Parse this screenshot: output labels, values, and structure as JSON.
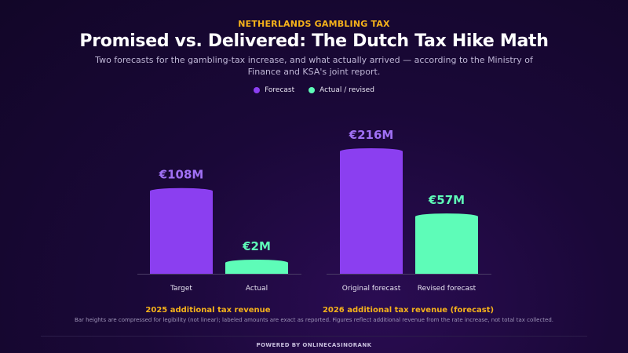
{
  "header": {
    "kicker": "NETHERLANDS GAMBLING TAX",
    "title": "Promised vs. Delivered: The Dutch Tax Hike Math",
    "subtitle": "Two forecasts for the gambling-tax increase, and what actually arrived — according to the Ministry of Finance and KSA's joint report."
  },
  "legend": [
    {
      "label": "Forecast",
      "color": "#8b3ff0"
    },
    {
      "label": "Actual / revised",
      "color": "#5efcb8"
    }
  ],
  "chart_data": {
    "type": "bar",
    "categories": [
      "Target",
      "Actual",
      "Original forecast",
      "Revised forecast"
    ],
    "values": [
      108,
      2,
      216,
      57
    ],
    "value_labels": [
      "€108M",
      "€2M",
      "€216M",
      "€57M"
    ],
    "bar_kind": [
      "forecast",
      "actual",
      "forecast",
      "actual"
    ],
    "groups": [
      {
        "label": "2025 additional tax revenue",
        "categories": [
          "Target",
          "Actual"
        ]
      },
      {
        "label": "2026 additional tax revenue (forecast)",
        "categories": [
          "Original forecast",
          "Revised forecast"
        ]
      }
    ],
    "colors": {
      "forecast": "#8b3ff0",
      "actual": "#5efcb8",
      "forecast_label": "#a070f5",
      "actual_label": "#5efcb8"
    },
    "scale": "compressed (not linear)",
    "grid": false
  },
  "footnote": "Bar heights are compressed for legibility (not linear); labeled amounts are exact as reported. Figures reflect additional revenue from the rate increase, not total tax collected.",
  "footer": "POWERED BY ONLINECASINORANK"
}
